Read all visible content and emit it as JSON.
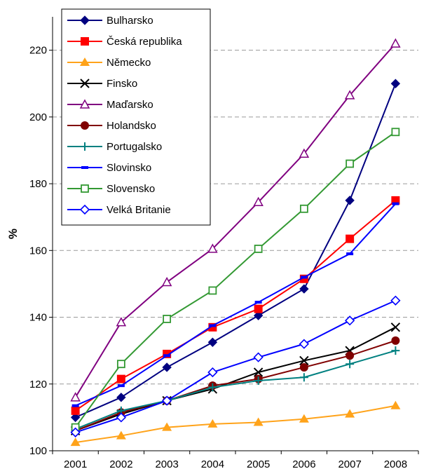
{
  "chart_data": {
    "type": "line",
    "ylabel": "%",
    "xlabel": "",
    "ylim": [
      100,
      230
    ],
    "yticks": [
      100,
      120,
      140,
      160,
      180,
      200,
      220
    ],
    "categories": [
      "2001",
      "2002",
      "2003",
      "2004",
      "2005",
      "2006",
      "2007",
      "2008"
    ],
    "grid": "horizontal dashed",
    "legend_position": "top-left (inside plot)",
    "series": [
      {
        "name": "Bulharsko",
        "color": "#000080",
        "marker": "diamond-filled",
        "values": [
          110,
          116,
          125,
          132.5,
          140.5,
          148.5,
          175,
          210
        ]
      },
      {
        "name": "Česká republika",
        "color": "#ff0000",
        "marker": "square-filled",
        "values": [
          112,
          121.5,
          129,
          137,
          142.5,
          151.5,
          163.5,
          175
        ]
      },
      {
        "name": "Německo",
        "color": "#ffa31a",
        "marker": "triangle-filled",
        "values": [
          102.5,
          104.5,
          107,
          108,
          108.5,
          109.5,
          111,
          113.5
        ]
      },
      {
        "name": "Finsko",
        "color": "#000000",
        "marker": "x",
        "values": [
          106,
          111,
          115,
          118.5,
          123.5,
          127,
          130,
          137
        ]
      },
      {
        "name": "Maďarsko",
        "color": "#800080",
        "marker": "triangle-open",
        "values": [
          116,
          138.5,
          150.5,
          160.5,
          174.5,
          189,
          206.5,
          222
        ]
      },
      {
        "name": "Holandsko",
        "color": "#800000",
        "marker": "circle-filled",
        "values": [
          106,
          111.5,
          115,
          119.5,
          121.5,
          125,
          128.5,
          133
        ]
      },
      {
        "name": "Portugalsko",
        "color": "#008080",
        "marker": "plus",
        "values": [
          106.5,
          112,
          115,
          119,
          121,
          122,
          126,
          130
        ]
      },
      {
        "name": "Slovinsko",
        "color": "#0000ff",
        "marker": "dash",
        "values": [
          113.5,
          119.5,
          128.5,
          137.5,
          144.5,
          152,
          159,
          174
        ]
      },
      {
        "name": "Slovensko",
        "color": "#339933",
        "marker": "square-open",
        "values": [
          107,
          126,
          139.5,
          148,
          160.5,
          172.5,
          186,
          195.5
        ]
      },
      {
        "name": "Velká Britanie",
        "color": "#0000ff",
        "marker": "diamond-open",
        "values": [
          105.5,
          110,
          115,
          123.5,
          128,
          132,
          139,
          145
        ]
      }
    ]
  }
}
